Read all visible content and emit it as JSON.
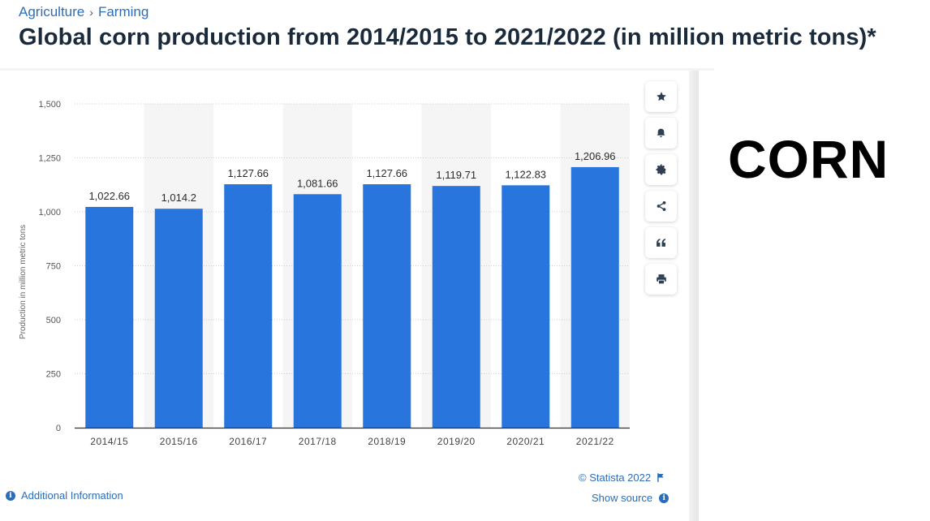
{
  "breadcrumb": {
    "items": [
      "Agriculture",
      "Farming"
    ],
    "separator": "›"
  },
  "title": "Global corn production from 2014/2015 to 2021/2022 (in million metric tons)*",
  "side_label": "CORN",
  "toolbar": {
    "icons": [
      "star-icon",
      "bell-icon",
      "gear-icon",
      "share-icon",
      "quote-icon",
      "print-icon"
    ]
  },
  "footer": {
    "additional_info": "Additional Information",
    "credit": "© Statista 2022",
    "show_source": "Show source"
  },
  "chart_data": {
    "type": "bar",
    "categories": [
      "2014/15",
      "2015/16",
      "2016/17",
      "2017/18",
      "2018/19",
      "2019/20",
      "2020/21",
      "2021/22"
    ],
    "values": [
      1022.66,
      1014.2,
      1127.66,
      1081.66,
      1127.66,
      1119.71,
      1122.83,
      1206.96
    ],
    "value_labels": [
      "1,022.66",
      "1,014.2",
      "1,127.66",
      "1,081.66",
      "1,127.66",
      "1,119.71",
      "1,122.83",
      "1,206.96"
    ],
    "ylabel": "Production in million metric tons",
    "ylim": [
      0,
      1500
    ],
    "yticks": [
      0,
      250,
      500,
      750,
      1000,
      1250,
      1500
    ],
    "ytick_labels": [
      "0",
      "250",
      "500",
      "750",
      "1,000",
      "1,250",
      "1,500"
    ],
    "grid": true,
    "bar_color": "#2876dd",
    "alt_band_color": "#f5f5f5"
  }
}
